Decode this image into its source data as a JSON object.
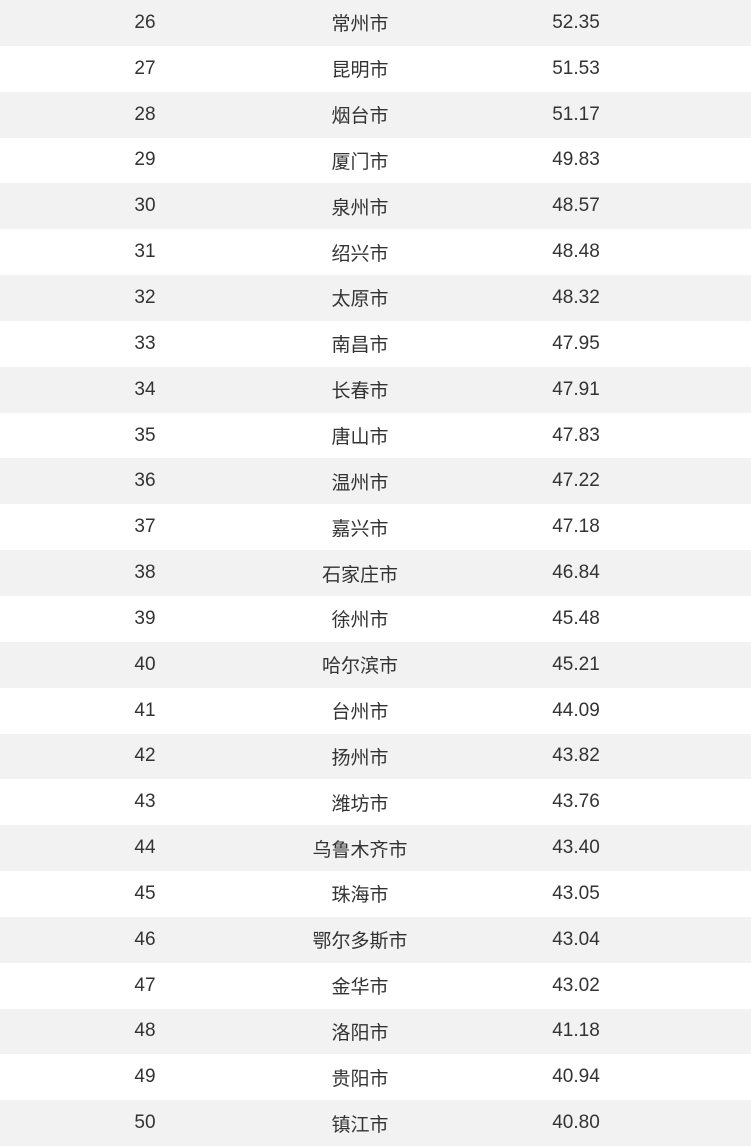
{
  "table": {
    "rows": [
      [
        "26",
        "常州市",
        "52.35"
      ],
      [
        "27",
        "昆明市",
        "51.53"
      ],
      [
        "28",
        "烟台市",
        "51.17"
      ],
      [
        "29",
        "厦门市",
        "49.83"
      ],
      [
        "30",
        "泉州市",
        "48.57"
      ],
      [
        "31",
        "绍兴市",
        "48.48"
      ],
      [
        "32",
        "太原市",
        "48.32"
      ],
      [
        "33",
        "南昌市",
        "47.95"
      ],
      [
        "34",
        "长春市",
        "47.91"
      ],
      [
        "35",
        "唐山市",
        "47.83"
      ],
      [
        "36",
        "温州市",
        "47.22"
      ],
      [
        "37",
        "嘉兴市",
        "47.18"
      ],
      [
        "38",
        "石家庄市",
        "46.84"
      ],
      [
        "39",
        "徐州市",
        "45.48"
      ],
      [
        "40",
        "哈尔滨市",
        "45.21"
      ],
      [
        "41",
        "台州市",
        "44.09"
      ],
      [
        "42",
        "扬州市",
        "43.82"
      ],
      [
        "43",
        "潍坊市",
        "43.76"
      ],
      [
        "44",
        "乌鲁木齐市",
        "43.40"
      ],
      [
        "45",
        "珠海市",
        "43.05"
      ],
      [
        "46",
        "鄂尔多斯市",
        "43.04"
      ],
      [
        "47",
        "金华市",
        "43.02"
      ],
      [
        "48",
        "洛阳市",
        "41.18"
      ],
      [
        "49",
        "贵阳市",
        "40.94"
      ],
      [
        "50",
        "镇江市",
        "40.80"
      ]
    ]
  }
}
